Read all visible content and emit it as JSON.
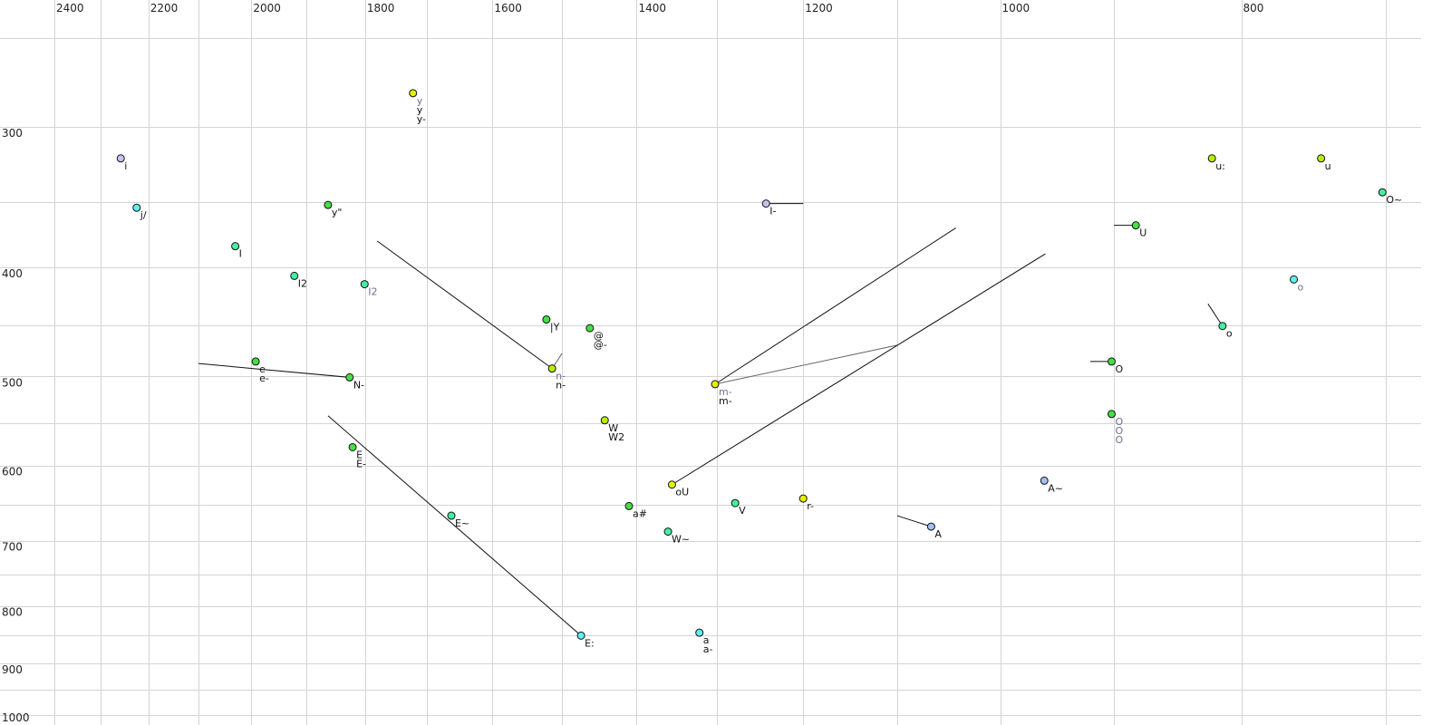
{
  "chart_data": {
    "type": "scatter",
    "title": "",
    "xlabel": "",
    "ylabel": "",
    "x_scale": "log",
    "y_scale": "log",
    "x_reversed": true,
    "y_reversed": true,
    "xlim": [
      2400,
      700
    ],
    "ylim": [
      250,
      1000
    ],
    "x_gridlines": [
      2400,
      2300,
      2200,
      2100,
      2000,
      1900,
      1800,
      1700,
      1600,
      1500,
      1400,
      1300,
      1200,
      1100,
      1000,
      900,
      800,
      700
    ],
    "x_ticklabels": [
      "2400",
      "2200",
      "2000",
      "1800",
      "1600",
      "1400",
      "1200",
      "1000",
      "800"
    ],
    "y_gridlines": [
      250,
      300,
      350,
      400,
      450,
      500,
      550,
      600,
      650,
      700,
      750,
      800,
      850,
      900,
      950,
      1000
    ],
    "y_ticklabels": [
      "300",
      "400",
      "500",
      "600",
      "700",
      "800",
      "900",
      "1000"
    ],
    "grid": true,
    "colors": {
      "lavender": "#c8c0f0",
      "cyan": "#60f0f0",
      "green": "#44e044",
      "teal": "#44f0a0",
      "lime": "#b4f000",
      "yellow": "#e4f000",
      "blue": "#a0c0f0",
      "grey_label": "#707090"
    },
    "points": [
      {
        "f2": 1722,
        "f1": 280,
        "color": "yellow",
        "labels": [
          {
            "t": "y",
            "grey": true
          },
          {
            "t": "y"
          },
          {
            "t": "y-"
          }
        ]
      },
      {
        "f2": 2257,
        "f1": 320,
        "color": "lavender",
        "labels": [
          {
            "t": "i"
          }
        ]
      },
      {
        "f2": 2224,
        "f1": 354,
        "color": "cyan",
        "labels": [
          {
            "t": "j/"
          }
        ]
      },
      {
        "f2": 1863,
        "f1": 352,
        "color": "green",
        "labels": [
          {
            "t": "y\""
          }
        ]
      },
      {
        "f2": 2030,
        "f1": 383,
        "color": "teal",
        "labels": [
          {
            "t": "I"
          }
        ]
      },
      {
        "f2": 1922,
        "f1": 407,
        "color": "teal",
        "labels": [
          {
            "t": "I2"
          }
        ]
      },
      {
        "f2": 1801,
        "f1": 414,
        "color": "teal",
        "labels": [
          {
            "t": "I2",
            "grey": true
          }
        ]
      },
      {
        "f2": 1522,
        "f1": 445,
        "color": "green",
        "labels": [
          {
            "t": "|Y"
          }
        ]
      },
      {
        "f2": 1462,
        "f1": 453,
        "color": "green",
        "labels": [
          {
            "t": "@"
          },
          {
            "t": "@-"
          }
        ]
      },
      {
        "f2": 1514,
        "f1": 492,
        "color": "lime",
        "labels": [
          {
            "t": "n-",
            "grey": true
          },
          {
            "t": "n-"
          }
        ],
        "from": [
          [
            1780,
            379
          ],
          [
            1500,
            477,
            "grey"
          ]
        ]
      },
      {
        "f2": 1992,
        "f1": 485,
        "color": "green",
        "labels": [
          {
            "t": "e"
          },
          {
            "t": "e-"
          }
        ]
      },
      {
        "f2": 1826,
        "f1": 501,
        "color": "green",
        "labels": [
          {
            "t": "N-"
          }
        ],
        "from": [
          [
            2100,
            487
          ]
        ]
      },
      {
        "f2": 1302,
        "f1": 508,
        "color": "yellow",
        "labels": [
          {
            "t": "m-",
            "grey": true
          },
          {
            "t": "m-"
          }
        ],
        "from": [
          [
            1042,
            369
          ],
          [
            1100,
            469,
            "grey"
          ]
        ]
      },
      {
        "f2": 1242,
        "f1": 351,
        "color": "lavender",
        "labels": [
          {
            "t": "I-"
          }
        ],
        "from": [
          [
            1200,
            351
          ]
        ]
      },
      {
        "f2": 882,
        "f1": 367,
        "color": "green",
        "labels": [
          {
            "t": "U"
          }
        ],
        "from": [
          [
            900,
            367
          ]
        ]
      },
      {
        "f2": 822,
        "f1": 320,
        "color": "lime",
        "labels": [
          {
            "t": "u:"
          }
        ]
      },
      {
        "f2": 743,
        "f1": 320,
        "color": "lime",
        "labels": [
          {
            "t": "u"
          }
        ]
      },
      {
        "f2": 702,
        "f1": 343,
        "color": "teal",
        "labels": [
          {
            "t": "O~"
          }
        ]
      },
      {
        "f2": 762,
        "f1": 410,
        "color": "cyan",
        "labels": [
          {
            "t": "o",
            "grey": true
          }
        ]
      },
      {
        "f2": 814,
        "f1": 451,
        "color": "teal",
        "labels": [
          {
            "t": "o"
          }
        ],
        "from": [
          [
            825,
            431
          ]
        ]
      },
      {
        "f2": 902,
        "f1": 485,
        "color": "green",
        "labels": [
          {
            "t": "O"
          }
        ],
        "from": [
          [
            920,
            485
          ]
        ]
      },
      {
        "f2": 902,
        "f1": 540,
        "color": "green",
        "labels": [
          {
            "t": "O",
            "grey": true
          },
          {
            "t": "O",
            "grey": true
          },
          {
            "t": "O",
            "grey": true
          }
        ]
      },
      {
        "f2": 1442,
        "f1": 547,
        "color": "lime",
        "labels": [
          {
            "t": "W"
          },
          {
            "t": "W2"
          }
        ]
      },
      {
        "f2": 1821,
        "f1": 578,
        "color": "green",
        "labels": [
          {
            "t": "E"
          },
          {
            "t": "E-"
          }
        ]
      },
      {
        "f2": 1355,
        "f1": 624,
        "color": "yellow",
        "labels": [
          {
            "t": "oU"
          }
        ],
        "from": [
          [
            959,
            389
          ]
        ]
      },
      {
        "f2": 960,
        "f1": 619,
        "color": "blue",
        "labels": [
          {
            "t": "A~"
          }
        ]
      },
      {
        "f2": 1410,
        "f1": 652,
        "color": "green",
        "labels": [
          {
            "t": "a#"
          }
        ]
      },
      {
        "f2": 1278,
        "f1": 648,
        "color": "teal",
        "labels": [
          {
            "t": "V"
          }
        ]
      },
      {
        "f2": 1200,
        "f1": 642,
        "color": "yellow",
        "labels": [
          {
            "t": "r-"
          }
        ],
        "from": [
          [
            1200,
            638
          ]
        ]
      },
      {
        "f2": 1662,
        "f1": 665,
        "color": "teal",
        "labels": [
          {
            "t": "E~"
          }
        ]
      },
      {
        "f2": 1360,
        "f1": 687,
        "color": "teal",
        "labels": [
          {
            "t": "W~"
          }
        ]
      },
      {
        "f2": 1066,
        "f1": 680,
        "color": "blue",
        "labels": [
          {
            "t": "A"
          }
        ],
        "from": [
          [
            1100,
            665
          ]
        ]
      },
      {
        "f2": 1474,
        "f1": 850,
        "color": "cyan",
        "labels": [
          {
            "t": "E:"
          }
        ],
        "from": [
          [
            1863,
            542
          ]
        ]
      },
      {
        "f2": 1321,
        "f1": 845,
        "color": "cyan",
        "labels": [
          {
            "t": "a"
          },
          {
            "t": "a-"
          }
        ]
      }
    ]
  }
}
